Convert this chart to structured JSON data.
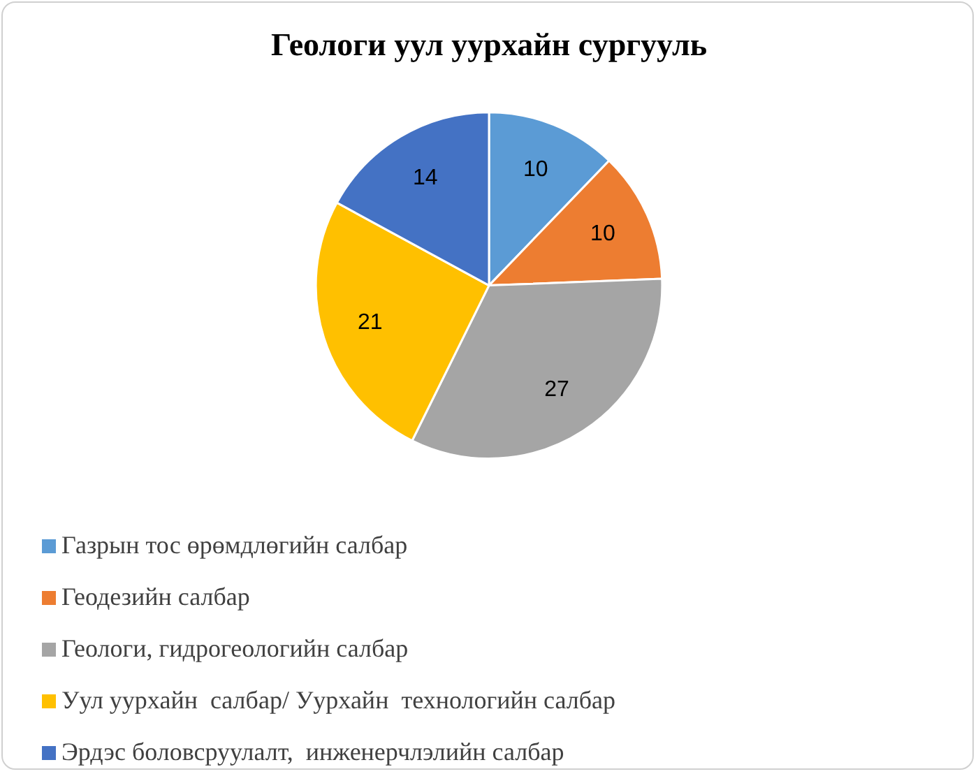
{
  "chart_data": {
    "type": "pie",
    "title": "Геологи уул уурхайн сургууль",
    "categories": [
      "Газрын тос өрөмдлөгийн салбар",
      "Геодезийн салбар",
      "Геологи, гидрогеологийн салбар",
      "Уул уурхайн  салбар/ Уурхайн  технологийн салбар",
      "Эрдэс боловсруулалт,  инженерчлэлийн салбар"
    ],
    "values": [
      10,
      10,
      27,
      21,
      14
    ],
    "colors": [
      "#5b9bd5",
      "#ed7d31",
      "#a5a5a5",
      "#ffc000",
      "#4472c4"
    ],
    "data_labels": true,
    "legend": "bottom"
  }
}
